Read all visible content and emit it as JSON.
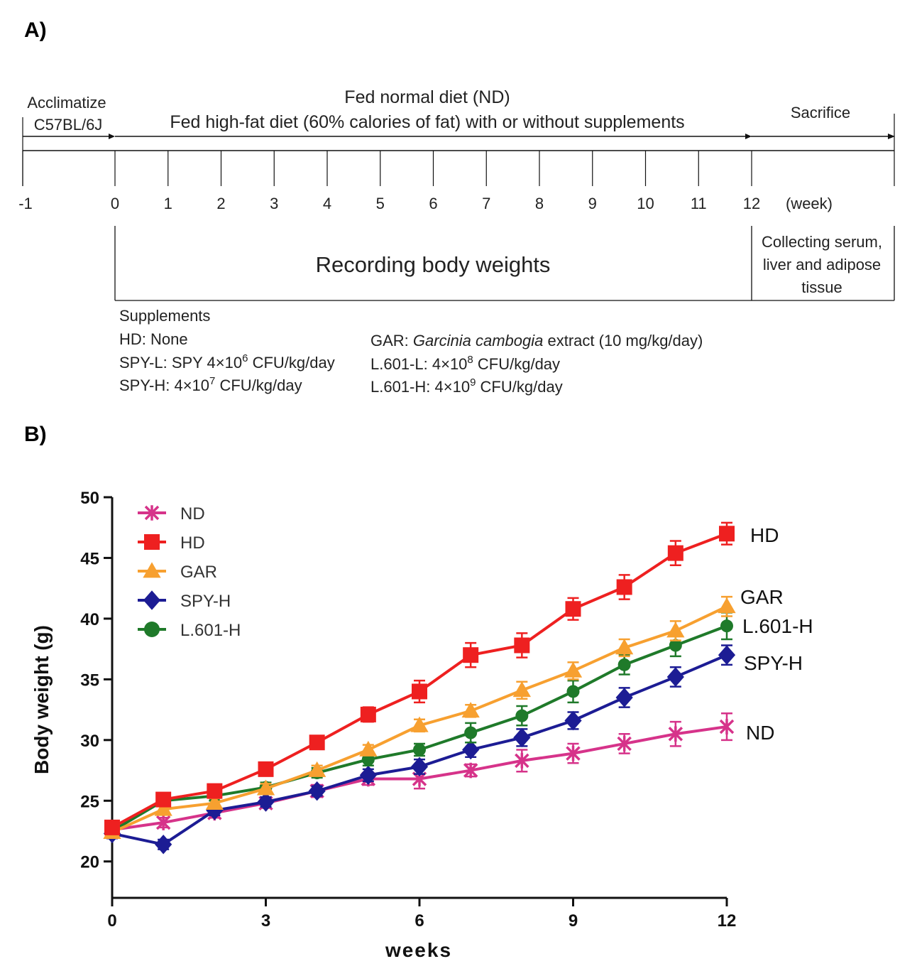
{
  "panel_a": {
    "label": "A)",
    "acclimatize": "Acclimatize",
    "strain": "C57BL/6J",
    "fed_normal": "Fed normal diet (ND)",
    "fed_high_fat": "Fed high-fat diet (60% calories of fat) with or without supplements",
    "sacrifice": "Sacrifice",
    "week_ticks": [
      "-1",
      "0",
      "1",
      "2",
      "3",
      "4",
      "5",
      "6",
      "7",
      "8",
      "9",
      "10",
      "11",
      "12"
    ],
    "week_unit": "(week)",
    "recording": "Recording body weights",
    "collecting": [
      "Collecting serum,",
      "liver and adipose",
      "tissue"
    ],
    "supplements_title": "Supplements",
    "supplements_left": [
      {
        "name": "HD:",
        "text": "None"
      },
      {
        "name": "SPY-L:",
        "text": "SPY 4×10",
        "exp": "6",
        "unit": "CFU/kg/day"
      },
      {
        "name": "SPY-H:",
        "text": "4×10",
        "exp": "7",
        "unit": "CFU/kg/day"
      }
    ],
    "supplements_right": [
      {
        "name": "GAR:",
        "italic": "Garcinia cambogia",
        "text": "extract (10 mg/kg/day)"
      },
      {
        "name": "L.601-L:",
        "text": "4×10",
        "exp": "8",
        "unit": "CFU/kg/day"
      },
      {
        "name": "L.601-H:",
        "text": "4×10",
        "exp": "9",
        "unit": "CFU/kg/day"
      }
    ]
  },
  "panel_b": {
    "label": "B)"
  },
  "chart_data": {
    "type": "line",
    "title": "",
    "xlabel": "weeks",
    "ylabel": "Body weight (g)",
    "xlim": [
      0,
      12
    ],
    "ylim": [
      17,
      50
    ],
    "xticks": [
      0,
      3,
      6,
      9,
      12
    ],
    "yticks": [
      20,
      25,
      30,
      35,
      40,
      45,
      50
    ],
    "legend_position": "top-left",
    "x": [
      0,
      1,
      2,
      3,
      4,
      5,
      6,
      7,
      8,
      9,
      10,
      11,
      12
    ],
    "series": [
      {
        "name": "ND",
        "color": "#d6338a",
        "marker": "asterisk",
        "values": [
          22.6,
          23.2,
          24.0,
          24.8,
          25.8,
          26.8,
          26.8,
          27.5,
          28.3,
          28.9,
          29.7,
          30.5,
          31.1
        ],
        "errors": [
          0.4,
          0.4,
          0.4,
          0.4,
          0.5,
          0.5,
          0.8,
          0.5,
          0.9,
          0.8,
          0.8,
          1.0,
          1.1
        ]
      },
      {
        "name": "HD",
        "color": "#ee2020",
        "marker": "square",
        "values": [
          22.8,
          25.1,
          25.8,
          27.6,
          29.8,
          32.1,
          34.0,
          37.0,
          37.8,
          40.8,
          42.6,
          45.4,
          47.0
        ],
        "errors": [
          0.5,
          0.4,
          0.4,
          0.5,
          0.5,
          0.6,
          0.9,
          1.0,
          1.0,
          0.9,
          1.0,
          1.0,
          0.9
        ]
      },
      {
        "name": "GAR",
        "color": "#f7a030",
        "marker": "triangle",
        "values": [
          22.4,
          24.3,
          24.8,
          26.0,
          27.5,
          29.2,
          31.2,
          32.4,
          34.1,
          35.7,
          37.6,
          39.0,
          41.0
        ],
        "errors": [
          0.4,
          0.4,
          0.4,
          0.4,
          0.4,
          0.4,
          0.5,
          0.5,
          0.7,
          0.7,
          0.7,
          0.8,
          0.8
        ]
      },
      {
        "name": "SPY-H",
        "color": "#1c1c94",
        "marker": "diamond",
        "values": [
          22.3,
          21.4,
          24.2,
          24.9,
          25.8,
          27.1,
          27.8,
          29.2,
          30.2,
          31.6,
          33.5,
          35.2,
          37.0
        ],
        "errors": [
          0.4,
          0.4,
          0.4,
          0.4,
          0.4,
          0.5,
          0.6,
          0.6,
          0.7,
          0.7,
          0.8,
          0.8,
          0.8
        ]
      },
      {
        "name": "L.601-H",
        "color": "#1f7a2a",
        "marker": "circle",
        "values": [
          22.5,
          25.0,
          25.4,
          26.1,
          27.3,
          28.4,
          29.2,
          30.6,
          32.0,
          34.0,
          36.2,
          37.8,
          39.4
        ],
        "errors": [
          0.4,
          0.4,
          0.4,
          0.4,
          0.4,
          0.5,
          0.5,
          0.8,
          0.8,
          0.9,
          0.8,
          0.9,
          1.1
        ]
      }
    ],
    "end_labels": [
      {
        "series": "HD",
        "text": "HD"
      },
      {
        "series": "GAR",
        "text": "GAR"
      },
      {
        "series": "L.601-H",
        "text": "L.601-H"
      },
      {
        "series": "SPY-H",
        "text": "SPY-H"
      },
      {
        "series": "ND",
        "text": "ND"
      }
    ]
  }
}
